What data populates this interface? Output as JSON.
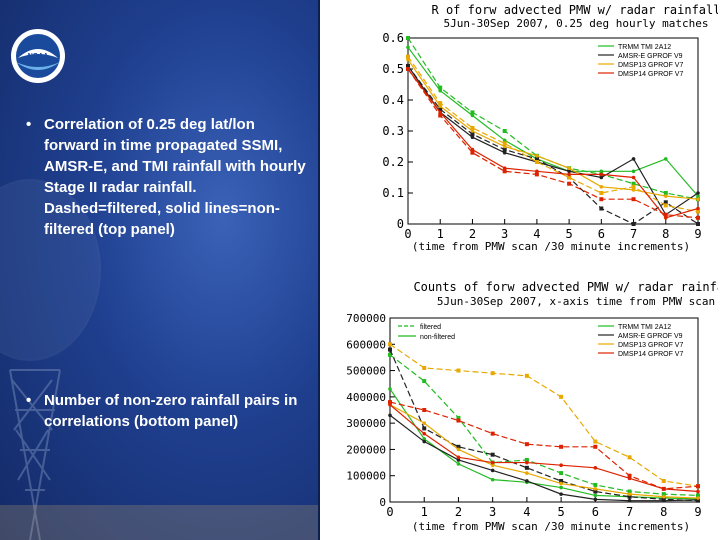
{
  "slide": {
    "bullets": [
      {
        "marker": "•",
        "text": "Correlation of 0.25 deg lat/lon forward in time propagated SSMI, AMSR-E, and TMI rainfall with hourly Stage II radar rainfall. Dashed=filtered, solid lines=non-filtered (top panel)"
      },
      {
        "marker": "•",
        "text": "Number of non-zero rainfall pairs in correlations (bottom panel)"
      }
    ],
    "logo_text": "NOAA"
  },
  "colors": {
    "series": [
      "#22bb22",
      "#222222",
      "#e8a800",
      "#dd2200"
    ],
    "panel_bg": "#1f3f8f"
  },
  "chart_data": [
    {
      "type": "line",
      "title": "R of forw advected PMW w/ radar rainfall",
      "subtitle": "5Jun-30Sep 2007, 0.25 deg hourly matches",
      "xlabel": "(time from PMW scan /30 minute increments)",
      "ylabel": "",
      "x": [
        0,
        1,
        2,
        3,
        4,
        5,
        6,
        7,
        8,
        9
      ],
      "xlim": [
        0,
        9
      ],
      "ylim": [
        0,
        0.6
      ],
      "yticks": [
        "0",
        "0.1",
        "0.2",
        "0.3",
        "0.4",
        "0.5",
        "0.6"
      ],
      "legend": {
        "placement": "top-right",
        "entries": [
          "TRMM TMI 2A12",
          "AMSR-E GPROF V9",
          "DMSP13 GPROF V7",
          "DMSP14 GPROF V7"
        ]
      },
      "series": [
        {
          "name": "TRMM TMI 2A12",
          "style": "solid",
          "values": [
            0.57,
            0.43,
            0.35,
            0.27,
            0.21,
            0.17,
            0.17,
            0.17,
            0.21,
            0.09
          ]
        },
        {
          "name": "TRMM TMI 2A12",
          "style": "dashed",
          "values": [
            0.6,
            0.44,
            0.36,
            0.3,
            0.22,
            0.18,
            0.16,
            0.13,
            0.1,
            0.08
          ]
        },
        {
          "name": "AMSR-E GPROF V9",
          "style": "solid",
          "values": [
            0.51,
            0.36,
            0.28,
            0.23,
            0.2,
            0.17,
            0.15,
            0.21,
            0.03,
            0.1
          ]
        },
        {
          "name": "AMSR-E GPROF V9",
          "style": "dashed",
          "values": [
            0.51,
            0.37,
            0.29,
            0.24,
            0.21,
            0.15,
            0.05,
            0.0,
            0.07,
            0.0
          ]
        },
        {
          "name": "DMSP13 GPROF V7",
          "style": "solid",
          "values": [
            0.53,
            0.38,
            0.3,
            0.25,
            0.22,
            0.18,
            0.12,
            0.11,
            0.09,
            0.08
          ]
        },
        {
          "name": "DMSP13 GPROF V7",
          "style": "dashed",
          "values": [
            0.54,
            0.39,
            0.31,
            0.26,
            0.2,
            0.15,
            0.1,
            0.12,
            0.06,
            0.04
          ]
        },
        {
          "name": "DMSP14 GPROF V7",
          "style": "solid",
          "values": [
            0.5,
            0.36,
            0.24,
            0.18,
            0.17,
            0.16,
            0.16,
            0.15,
            0.02,
            0.05
          ]
        },
        {
          "name": "DMSP14 GPROF V7",
          "style": "dashed",
          "values": [
            0.5,
            0.35,
            0.23,
            0.17,
            0.16,
            0.13,
            0.08,
            0.08,
            0.03,
            0.02
          ]
        }
      ]
    },
    {
      "type": "line",
      "title": "Counts of forw advected PMW w/ radar rainfall",
      "subtitle": "5Jun-30Sep 2007, x-axis time from PMW scan",
      "xlabel": "(time from PMW scan /30 minute increments)",
      "ylabel": "",
      "x": [
        0,
        1,
        2,
        3,
        4,
        5,
        6,
        7,
        8,
        9
      ],
      "xlim": [
        0,
        9
      ],
      "ylim": [
        0,
        700000
      ],
      "yticks": [
        "0",
        "100000",
        "200000",
        "300000",
        "400000",
        "500000",
        "600000",
        "700000"
      ],
      "linestyle_legend": {
        "placement": "top-left",
        "entries": [
          {
            "label": "filtered",
            "style": "dashed"
          },
          {
            "label": "non-filtered",
            "style": "solid"
          }
        ]
      },
      "legend": {
        "placement": "top-right",
        "entries": [
          "TRMM TMI 2A12",
          "AMSR-E GPROF V9",
          "DMSP13 GPROF V7",
          "DMSP14 GPROF V7"
        ]
      },
      "series": [
        {
          "name": "TRMM TMI 2A12",
          "style": "solid",
          "values": [
            430000,
            240000,
            145000,
            85000,
            75000,
            55000,
            25000,
            20000,
            15000,
            12000
          ]
        },
        {
          "name": "TRMM TMI 2A12",
          "style": "dashed",
          "values": [
            560000,
            460000,
            320000,
            150000,
            160000,
            110000,
            65000,
            40000,
            30000,
            25000
          ]
        },
        {
          "name": "AMSR-E GPROF V9",
          "style": "solid",
          "values": [
            330000,
            230000,
            160000,
            120000,
            80000,
            30000,
            10000,
            5000,
            5000,
            8000
          ]
        },
        {
          "name": "AMSR-E GPROF V9",
          "style": "dashed",
          "values": [
            580000,
            280000,
            210000,
            180000,
            130000,
            80000,
            40000,
            20000,
            10000,
            5000
          ]
        },
        {
          "name": "DMSP13 GPROF V7",
          "style": "solid",
          "values": [
            370000,
            300000,
            200000,
            140000,
            110000,
            70000,
            50000,
            30000,
            20000,
            15000
          ]
        },
        {
          "name": "DMSP13 GPROF V7",
          "style": "dashed",
          "values": [
            600000,
            510000,
            500000,
            490000,
            480000,
            400000,
            230000,
            170000,
            80000,
            60000
          ]
        },
        {
          "name": "DMSP14 GPROF V7",
          "style": "solid",
          "values": [
            370000,
            260000,
            170000,
            150000,
            150000,
            140000,
            130000,
            90000,
            50000,
            40000
          ]
        },
        {
          "name": "DMSP14 GPROF V7",
          "style": "dashed",
          "values": [
            380000,
            350000,
            310000,
            260000,
            220000,
            210000,
            210000,
            100000,
            50000,
            60000
          ]
        }
      ]
    }
  ]
}
